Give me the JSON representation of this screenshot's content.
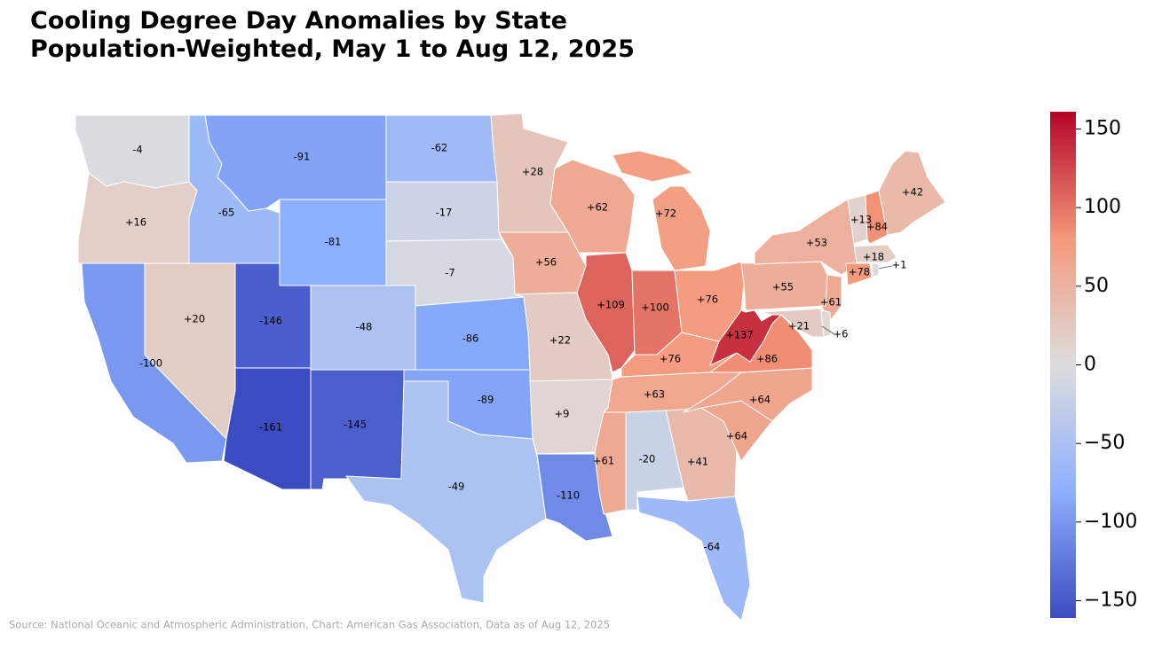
{
  "chart_data": {
    "type": "choropleth",
    "title": "Cooling Degree Day Anomalies by State",
    "subtitle": "Population-Weighted, May 1 to Aug 12, 2025",
    "values": [
      -4,
      16,
      -100,
      20,
      -65,
      -91,
      -81,
      -146,
      -161,
      -48,
      -145,
      -62,
      -17,
      -7,
      -86,
      -89,
      -49,
      28,
      56,
      22,
      9,
      -110,
      62,
      109,
      72,
      100,
      76,
      76,
      63,
      61,
      -20,
      41,
      -64,
      64,
      64,
      86,
      137,
      55,
      53,
      61,
      21,
      6,
      13,
      84,
      42,
      18,
      78,
      1
    ],
    "value_labels": [
      "-4",
      "+16",
      "-100",
      "+20",
      "-65",
      "-91",
      "-81",
      "-146",
      "-161",
      "-48",
      "-145",
      "-62",
      "-17",
      "-7",
      "-86",
      "-89",
      "-49",
      "+28",
      "+56",
      "+22",
      "+9",
      "-110",
      "+62",
      "+109",
      "+72",
      "+100",
      "+76",
      "+76",
      "+63",
      "+61",
      "-20",
      "+41",
      "-64",
      "+64",
      "+64",
      "+86",
      "+137",
      "+55",
      "+53",
      "+61",
      "+21",
      "+6",
      "+13",
      "+84",
      "+42",
      "+18",
      "+78",
      "+1"
    ],
    "colormap": "coolwarm",
    "clim": [
      -161,
      161
    ],
    "cticks": [
      {
        "value": 150,
        "label": "150"
      },
      {
        "value": 100,
        "label": "100"
      },
      {
        "value": 50,
        "label": "50"
      },
      {
        "value": 0,
        "label": "0"
      },
      {
        "value": -50,
        "label": "−50"
      },
      {
        "value": -100,
        "label": "−100"
      },
      {
        "value": -150,
        "label": "−150"
      }
    ],
    "source": "Source: National Oceanic and Atmospheric Administration, Chart: American Gas Association, Data as of Aug 12, 2025"
  }
}
